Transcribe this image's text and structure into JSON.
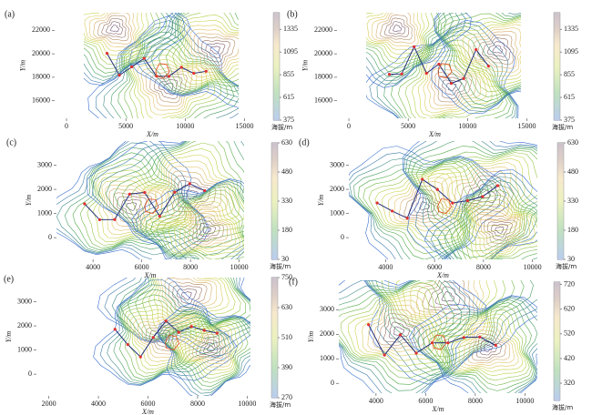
{
  "chart_data": [
    {
      "type": "contour",
      "panel_label": "(a)",
      "x_label": "X/m",
      "y_label": "Y/m",
      "xlim": [
        -1000,
        15500
      ],
      "ylim": [
        14500,
        23500
      ],
      "xticks": [
        0,
        5000,
        10000,
        15000
      ],
      "yticks": [
        16000,
        18000,
        20000,
        22000
      ],
      "colorbar_label": "海拔/m",
      "clim": [
        375,
        1510
      ],
      "cticks": [
        375,
        615,
        855,
        1095,
        1335
      ]
    },
    {
      "type": "contour",
      "panel_label": "(b)",
      "x_label": "X/m",
      "y_label": "Y/m",
      "xlim": [
        -1000,
        15500
      ],
      "ylim": [
        14500,
        23500
      ],
      "xticks": [
        0,
        5000,
        10000,
        15000
      ],
      "yticks": [
        16000,
        18000,
        20000,
        22000
      ],
      "colorbar_label": "海拔/m",
      "clim": [
        375,
        1510
      ],
      "cticks": [
        375,
        615,
        855,
        1095,
        1335
      ]
    },
    {
      "type": "contour",
      "panel_label": "(c)",
      "x_label": "X/m",
      "y_label": "Y/m",
      "xlim": [
        2500,
        10200
      ],
      "ylim": [
        -900,
        4000
      ],
      "xticks": [
        4000,
        6000,
        8000,
        10000
      ],
      "yticks": [
        0,
        1000,
        2000,
        3000
      ],
      "colorbar_label": "海拔/m",
      "clim": [
        30,
        630
      ],
      "cticks": [
        30,
        180,
        330,
        480,
        630
      ]
    },
    {
      "type": "contour",
      "panel_label": "(d)",
      "x_label": "X/m",
      "y_label": "Y/m",
      "xlim": [
        2500,
        10200
      ],
      "ylim": [
        -900,
        4000
      ],
      "xticks": [
        4000,
        6000,
        8000,
        10000
      ],
      "yticks": [
        0,
        1000,
        2000,
        3000
      ],
      "colorbar_label": "海拔/m",
      "clim": [
        30,
        630
      ],
      "cticks": [
        30,
        180,
        330,
        480,
        630
      ]
    },
    {
      "type": "contour",
      "panel_label": "(e)",
      "x_label": "X/m",
      "y_label": "Y/m",
      "xlim": [
        1500,
        10500
      ],
      "ylim": [
        -900,
        4000
      ],
      "xticks": [
        2000,
        4000,
        6000,
        8000,
        10000
      ],
      "yticks": [
        0,
        1000,
        2000,
        3000
      ],
      "colorbar_label": "海拔/m",
      "clim": [
        270,
        750
      ],
      "cticks": [
        270,
        390,
        510,
        630,
        750
      ]
    },
    {
      "type": "contour",
      "panel_label": "(f)",
      "x_label": "X/m",
      "y_label": "Y/m",
      "xlim": [
        2500,
        10500
      ],
      "ylim": [
        -400,
        4200
      ],
      "xticks": [
        4000,
        6000,
        8000,
        10000
      ],
      "yticks": [
        0,
        1000,
        2000,
        3000
      ],
      "colorbar_label": "海拔/m",
      "clim": [
        250,
        730
      ],
      "cticks": [
        320,
        420,
        520,
        620,
        720
      ]
    }
  ]
}
